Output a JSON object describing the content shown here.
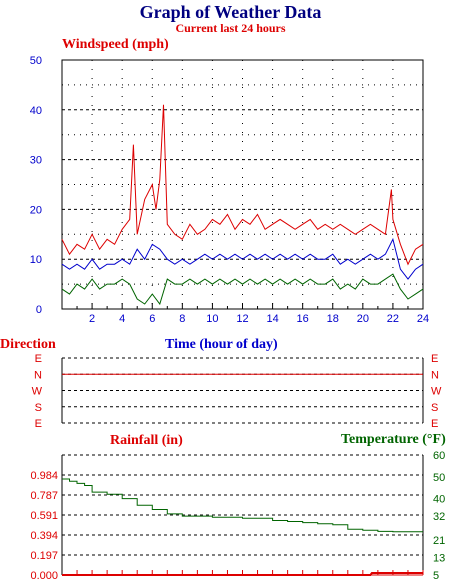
{
  "header": {
    "title": "Graph of Weather Data",
    "subtitle": "Current last 24 hours"
  },
  "colors": {
    "navy": "#000080",
    "red": "#dd0000",
    "blue": "#0000cc",
    "green": "#006400",
    "grid": "#000000"
  },
  "chart_data": [
    {
      "type": "line",
      "title": "Windspeed (mph)",
      "xlabel": "Time (hour of day)",
      "ylabel": "Windspeed (mph)",
      "xlim": [
        0,
        24
      ],
      "ylim": [
        0,
        50
      ],
      "x_ticks": [
        2,
        4,
        6,
        8,
        10,
        12,
        14,
        16,
        18,
        20,
        22,
        24
      ],
      "y_ticks": [
        0,
        10,
        20,
        30,
        40,
        50
      ],
      "grid": true,
      "series": [
        {
          "color": "#dd0000",
          "x": [
            0,
            0.5,
            1,
            1.5,
            2,
            2.5,
            3,
            3.5,
            4,
            4.5,
            4.75,
            5,
            5.5,
            6,
            6.25,
            6.5,
            6.75,
            7,
            7.5,
            8,
            8.5,
            9,
            9.5,
            10,
            10.5,
            11,
            11.5,
            12,
            12.5,
            13,
            13.5,
            14,
            14.5,
            15,
            15.5,
            16,
            16.5,
            17,
            17.5,
            18,
            18.5,
            19,
            19.5,
            20,
            20.5,
            21,
            21.5,
            21.9,
            22,
            22.5,
            23,
            23.5,
            24
          ],
          "values": [
            14,
            11,
            13,
            12,
            15,
            12,
            14,
            13,
            16,
            18,
            33,
            15,
            22,
            25,
            20,
            26,
            41,
            17,
            15,
            14,
            17,
            15,
            16,
            18,
            17,
            19,
            16,
            18,
            17,
            19,
            16,
            17,
            18,
            17,
            16,
            17,
            18,
            16,
            17,
            16,
            17,
            16,
            15,
            16,
            17,
            16,
            15,
            24,
            18,
            13,
            9,
            12,
            13
          ]
        },
        {
          "color": "#0000cc",
          "x": [
            0,
            0.5,
            1,
            1.5,
            2,
            2.5,
            3,
            3.5,
            4,
            4.5,
            5,
            5.5,
            6,
            6.5,
            7,
            7.5,
            8,
            8.5,
            9,
            9.5,
            10,
            10.5,
            11,
            11.5,
            12,
            12.5,
            13,
            13.5,
            14,
            14.5,
            15,
            15.5,
            16,
            16.5,
            17,
            17.5,
            18,
            18.5,
            19,
            19.5,
            20,
            20.5,
            21,
            21.5,
            22,
            22.5,
            23,
            23.5,
            24
          ],
          "values": [
            9,
            8,
            9,
            8,
            10,
            8,
            9,
            9,
            10,
            9,
            12,
            10,
            13,
            12,
            10,
            9,
            10,
            9,
            10,
            11,
            10,
            11,
            10,
            11,
            10,
            11,
            10,
            11,
            10,
            11,
            10,
            11,
            10,
            11,
            10,
            10,
            11,
            9,
            10,
            9,
            10,
            11,
            10,
            11,
            14,
            8,
            6,
            8,
            9
          ]
        },
        {
          "color": "#006400",
          "x": [
            0,
            0.5,
            1,
            1.5,
            2,
            2.5,
            3,
            3.5,
            4,
            4.5,
            5,
            5.5,
            6,
            6.5,
            7,
            7.5,
            8,
            8.5,
            9,
            9.5,
            10,
            10.5,
            11,
            11.5,
            12,
            12.5,
            13,
            13.5,
            14,
            14.5,
            15,
            15.5,
            16,
            16.5,
            17,
            17.5,
            18,
            18.5,
            19,
            19.5,
            20,
            20.5,
            21,
            21.5,
            22,
            22.5,
            23,
            23.5,
            24
          ],
          "values": [
            4,
            3,
            5,
            4,
            6,
            4,
            5,
            5,
            6,
            5,
            2,
            1,
            3,
            1,
            6,
            5,
            5,
            6,
            5,
            6,
            5,
            6,
            5,
            6,
            5,
            6,
            5,
            6,
            5,
            6,
            5,
            6,
            5,
            6,
            5,
            5,
            6,
            4,
            5,
            4,
            6,
            5,
            5,
            6,
            7,
            4,
            2,
            3,
            4
          ]
        }
      ]
    },
    {
      "type": "line",
      "title": "Direction",
      "xlim": [
        0,
        24
      ],
      "y_categories": [
        "E",
        "N",
        "W",
        "S",
        "E"
      ],
      "grid": true,
      "series": [
        {
          "color": "#dd0000",
          "x": [
            0,
            0.5,
            1,
            1.5,
            2,
            2.5,
            3,
            3.5,
            4,
            4.5,
            5,
            5.5,
            6,
            6.5,
            7,
            7.5,
            8,
            8.5,
            9,
            9.5,
            10,
            10.5,
            11,
            11.5,
            12,
            12.5,
            13,
            13.5,
            14,
            14.5,
            15,
            15.5,
            16,
            16.5,
            17,
            17.5,
            18,
            18.5,
            19,
            19.5,
            20,
            20.5,
            21,
            21.5,
            22,
            22.5,
            23,
            23.5,
            24
          ],
          "values": [
            "N",
            "N",
            "N",
            "N",
            "N",
            "N",
            "N",
            "N",
            "N",
            "N",
            "N",
            "N",
            "N",
            "N",
            "N",
            "N",
            "N",
            "N",
            "N",
            "N",
            "N",
            "N",
            "N",
            "N",
            "N",
            "N",
            "N",
            "N",
            "N",
            "N",
            "N",
            "N",
            "N",
            "N",
            "N",
            "N",
            "N",
            "N",
            "N",
            "N",
            "N",
            "N",
            "N",
            "N",
            "N",
            "N",
            "N",
            "N",
            "N"
          ]
        }
      ]
    },
    {
      "type": "line",
      "titles": [
        "Rainfall (in)",
        "Temperature (°F)"
      ],
      "xlim": [
        0,
        24
      ],
      "grid": true,
      "y_left": {
        "label": "Rainfall (in)",
        "ticks": [
          "0.000",
          "0.197",
          "0.394",
          "0.591",
          "0.787",
          "0.984"
        ],
        "ylim": [
          0,
          1.181
        ],
        "color": "#dd0000"
      },
      "y_right": {
        "label": "Temperature (°F)",
        "ticks": [
          "5",
          "13",
          "21",
          "32",
          "40",
          "50",
          "60"
        ],
        "ylim": [
          5,
          60
        ],
        "color": "#006400"
      },
      "series": [
        {
          "axis": "left",
          "color": "#dd0000",
          "x": [
            0,
            20.5,
            20.6,
            24
          ],
          "values": [
            0,
            0,
            0.02,
            0.02
          ]
        },
        {
          "axis": "right",
          "color": "#006400",
          "x": [
            0,
            0.5,
            1,
            1.5,
            2,
            3,
            4,
            5,
            6,
            7,
            8,
            9,
            10,
            11,
            12,
            13,
            14,
            15,
            16,
            17,
            18,
            19,
            20,
            21,
            22,
            23,
            24
          ],
          "values": [
            49,
            48,
            47,
            46,
            43,
            42,
            40,
            37,
            35,
            33,
            32,
            32,
            31.5,
            31.5,
            31,
            31,
            30,
            29.5,
            29,
            28.5,
            28,
            26,
            25.5,
            25,
            24.8,
            24.8,
            24.8
          ]
        }
      ]
    }
  ]
}
